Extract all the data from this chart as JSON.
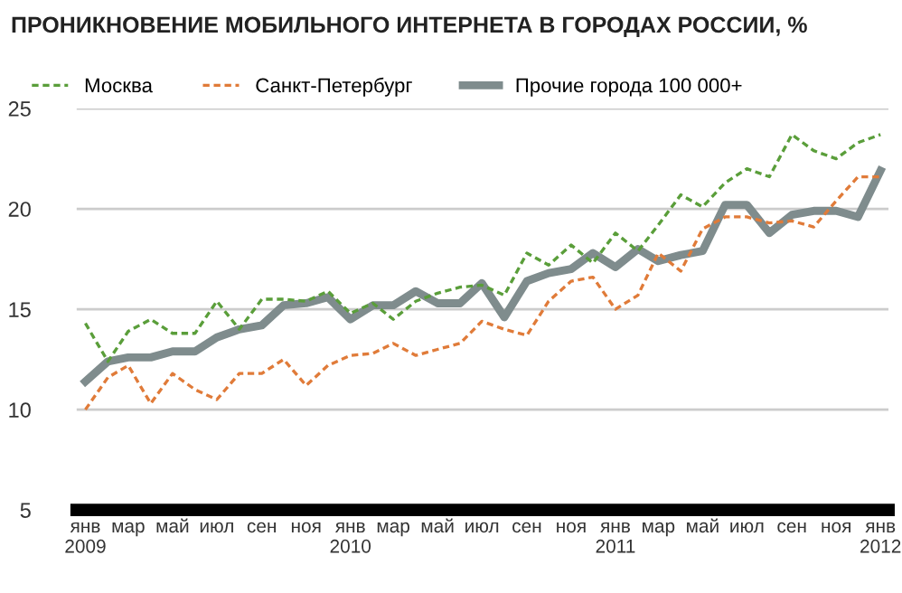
{
  "chart_data": {
    "type": "line",
    "title": "ПРОНИКНОВЕНИЕ МОБИЛЬНОГО ИНТЕРНЕТА В ГОРОДАХ РОССИИ, %",
    "x": [
      "2009-01",
      "2009-02",
      "2009-03",
      "2009-04",
      "2009-05",
      "2009-06",
      "2009-07",
      "2009-08",
      "2009-09",
      "2009-10",
      "2009-11",
      "2009-12",
      "2010-01",
      "2010-02",
      "2010-03",
      "2010-04",
      "2010-05",
      "2010-06",
      "2010-07",
      "2010-08",
      "2010-09",
      "2010-10",
      "2010-11",
      "2010-12",
      "2011-01",
      "2011-02",
      "2011-03",
      "2011-04",
      "2011-05",
      "2011-06",
      "2011-07",
      "2011-08",
      "2011-09",
      "2011-10",
      "2011-11",
      "2011-12",
      "2012-01"
    ],
    "series": [
      {
        "name": "Москва",
        "color": "#5a9e3a",
        "line_style": "dashed",
        "values": [
          14.3,
          12.4,
          13.9,
          14.5,
          13.8,
          13.8,
          15.4,
          14.0,
          15.5,
          15.5,
          15.4,
          15.9,
          14.8,
          15.3,
          14.5,
          15.4,
          15.8,
          16.1,
          16.2,
          15.7,
          17.8,
          17.2,
          18.2,
          17.3,
          18.8,
          17.9,
          19.2,
          20.7,
          20.1,
          21.3,
          22.0,
          21.6,
          23.7,
          22.9,
          22.5,
          23.3,
          23.7
        ]
      },
      {
        "name": "Санкт-Петербург",
        "color": "#e07b39",
        "line_style": "dashed",
        "values": [
          10.0,
          11.6,
          12.2,
          10.3,
          11.8,
          11.0,
          10.5,
          11.8,
          11.8,
          12.5,
          11.2,
          12.2,
          12.7,
          12.8,
          13.3,
          12.7,
          13.0,
          13.3,
          14.4,
          14.0,
          13.7,
          15.4,
          16.4,
          16.6,
          15.0,
          15.7,
          17.8,
          16.9,
          19.0,
          19.6,
          19.6,
          19.3,
          19.4,
          19.1,
          20.4,
          21.6,
          21.6
        ]
      },
      {
        "name": "Прочие города 100 000+",
        "color": "#7f8c8d",
        "line_style": "solid",
        "values": [
          11.4,
          12.4,
          12.6,
          12.6,
          12.9,
          12.9,
          13.6,
          14.0,
          14.2,
          15.2,
          15.3,
          15.6,
          14.5,
          15.2,
          15.2,
          15.9,
          15.3,
          15.3,
          16.3,
          14.6,
          16.4,
          16.8,
          17.0,
          17.8,
          17.1,
          18.0,
          17.4,
          17.7,
          17.9,
          20.2,
          20.2,
          18.8,
          19.7,
          19.9,
          19.9,
          19.6,
          21.9
        ]
      }
    ],
    "xlim": [
      "2008-12-20",
      "2012-01-12"
    ],
    "xticks": [
      {
        "value": "2009-01",
        "label": "янв\n2009"
      },
      {
        "value": "2009-03",
        "label": "мар"
      },
      {
        "value": "2009-05",
        "label": "май"
      },
      {
        "value": "2009-07",
        "label": "июл"
      },
      {
        "value": "2009-09",
        "label": "сен"
      },
      {
        "value": "2009-11",
        "label": "ноя"
      },
      {
        "value": "2010-01",
        "label": "янв\n2010"
      },
      {
        "value": "2010-03",
        "label": "мар"
      },
      {
        "value": "2010-05",
        "label": "май"
      },
      {
        "value": "2010-07",
        "label": "июл"
      },
      {
        "value": "2010-09",
        "label": "сен"
      },
      {
        "value": "2010-11",
        "label": "ноя"
      },
      {
        "value": "2011-01",
        "label": "янв\n2011"
      },
      {
        "value": "2011-03",
        "label": "мар"
      },
      {
        "value": "2011-05",
        "label": "май"
      },
      {
        "value": "2011-07",
        "label": "июл"
      },
      {
        "value": "2011-09",
        "label": "сен"
      },
      {
        "value": "2011-11",
        "label": "ноя"
      },
      {
        "value": "2012-01",
        "label": "янв\n2012"
      }
    ],
    "ylim": [
      5,
      25
    ],
    "yticks": [
      5,
      10,
      15,
      20,
      25
    ],
    "grid": "y",
    "legend": "top left",
    "marker": "none"
  }
}
